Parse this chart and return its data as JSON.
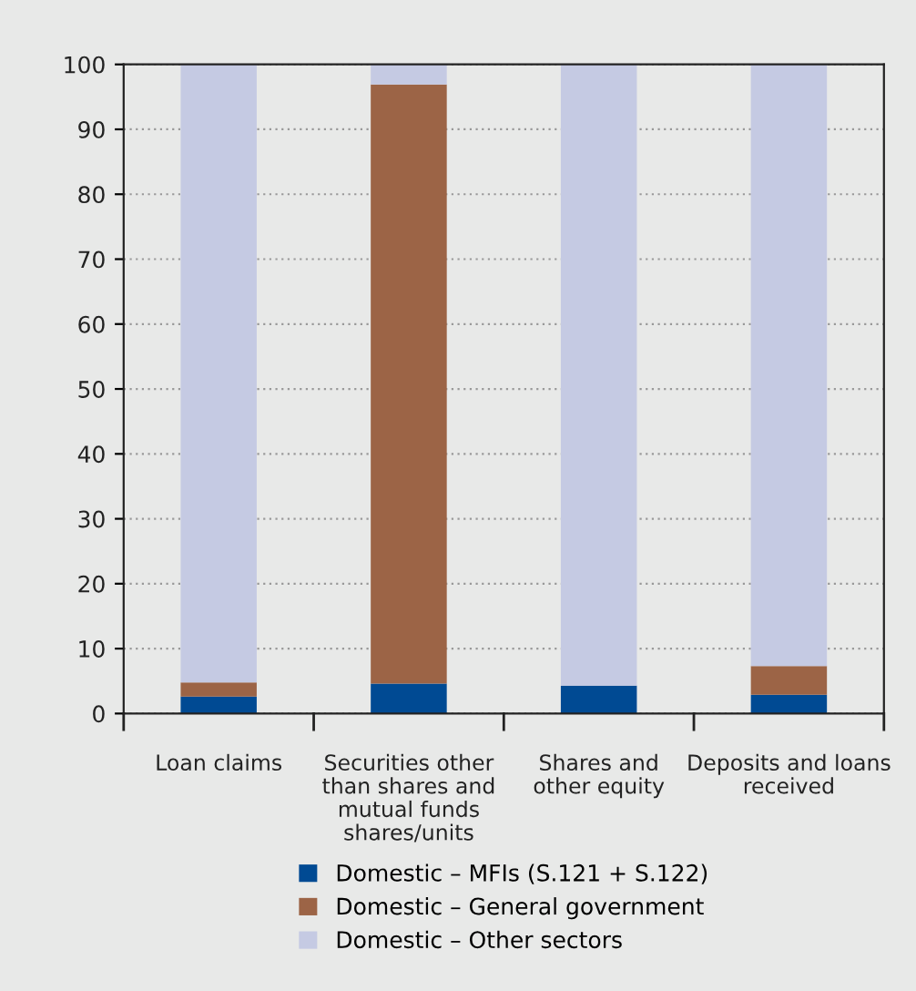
{
  "chart_data": {
    "type": "bar",
    "stacked": true,
    "categories": [
      "Loan claims",
      "Securities other\nthan shares and\nmutual funds\nshares/units",
      "Shares and\nother equity",
      "Deposits and loans\nreceived"
    ],
    "series": [
      {
        "name": "Domestic – MFIs (S.121 + S.122)",
        "color": "#004a93",
        "values": [
          2.6,
          4.6,
          4.3,
          2.9
        ]
      },
      {
        "name": "Domestic – General government",
        "color": "#9c6446",
        "values": [
          2.2,
          92.3,
          0,
          4.4
        ]
      },
      {
        "name": "Domestic – Other sectors",
        "color": "#c5cae3",
        "values": [
          95.2,
          3.1,
          95.7,
          92.7
        ]
      }
    ],
    "ylim": [
      0,
      100
    ],
    "yticks": [
      0,
      10,
      20,
      30,
      40,
      50,
      60,
      70,
      80,
      90,
      100
    ],
    "grid": "y",
    "legend": "bottom"
  }
}
